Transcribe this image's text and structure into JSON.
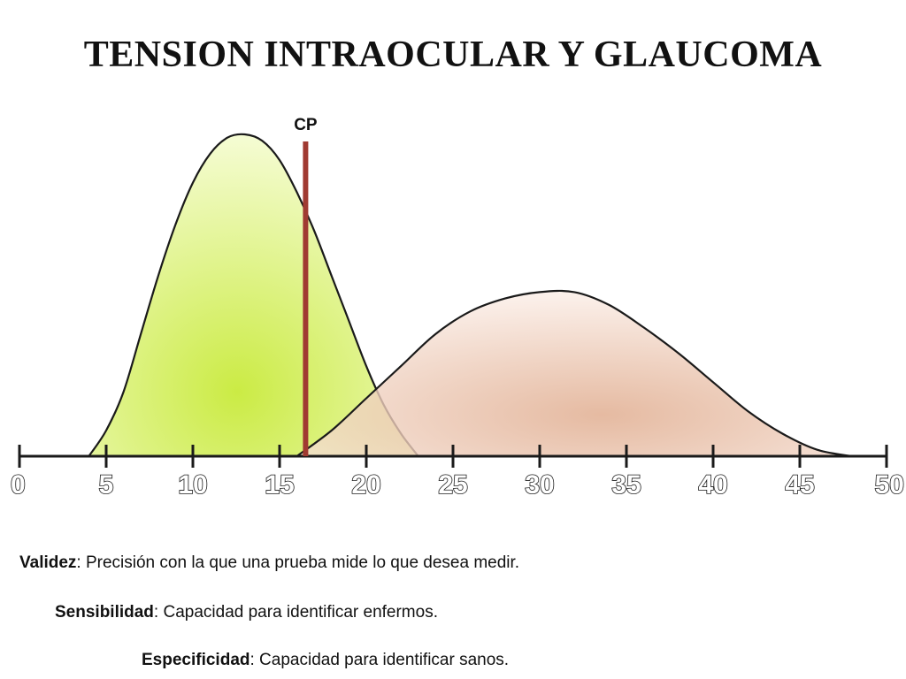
{
  "page": {
    "title": "TENSION INTRAOCULAR Y GLAUCOMA"
  },
  "chart_data": {
    "type": "area",
    "title": "TENSION INTRAOCULAR Y GLAUCOMA",
    "xlim": [
      0,
      50
    ],
    "x_ticks": [
      0,
      5,
      10,
      15,
      20,
      25,
      30,
      35,
      40,
      45,
      50
    ],
    "x_tick_labels": [
      "0",
      "5",
      "10",
      "15",
      "20",
      "25",
      "30",
      "35",
      "40",
      "45",
      "50"
    ],
    "grid": false,
    "series": [
      {
        "color": "#c8ea3a",
        "x": [
          4,
          5,
          6,
          7,
          8,
          9,
          10,
          11,
          12,
          13,
          14,
          15,
          16,
          17,
          18,
          19,
          20,
          21,
          22,
          23
        ],
        "values": [
          0,
          8,
          20,
          38,
          56,
          72,
          85,
          94,
          99,
          100,
          98,
          92,
          82,
          70,
          56,
          42,
          28,
          16,
          7,
          0
        ]
      },
      {
        "color": "#dfa98a",
        "x": [
          16,
          18,
          20,
          22,
          24,
          26,
          28,
          30,
          32,
          34,
          36,
          38,
          40,
          42,
          44,
          46,
          48
        ],
        "values": [
          0,
          8,
          18,
          28,
          38,
          45,
          49,
          51,
          51,
          47,
          40,
          32,
          23,
          14,
          7,
          2,
          0
        ]
      }
    ],
    "annotations": [
      {
        "label": "CP",
        "x": 16.5,
        "color": "#a03a32"
      }
    ]
  },
  "definitions": [
    {
      "term": "Validez",
      "text": ": Precisión con la que una prueba mide lo que desea medir."
    },
    {
      "term": "Sensibilidad",
      "text": ": Capacidad para identificar enfermos."
    },
    {
      "term": "Especificidad",
      "text": ": Capacidad para identificar sanos."
    }
  ]
}
